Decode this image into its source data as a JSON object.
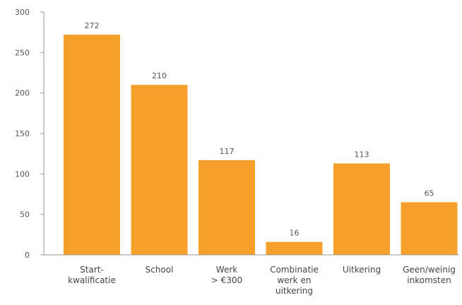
{
  "chart_data": {
    "type": "bar",
    "categories": [
      [
        "Start-",
        "kwalificatie"
      ],
      [
        "School"
      ],
      [
        "Werk",
        "> €300"
      ],
      [
        "Combinatie",
        "werk en",
        "uitkering"
      ],
      [
        "Uitkering"
      ],
      [
        "Geen/weinig",
        "inkomsten"
      ]
    ],
    "values": [
      272,
      210,
      117,
      16,
      113,
      65
    ],
    "data_labels": [
      "272",
      "210",
      "117",
      "16",
      "113",
      "65"
    ],
    "yticks": [
      0,
      50,
      100,
      150,
      200,
      250,
      300
    ],
    "ylim": [
      0,
      300
    ],
    "title": "",
    "xlabel": "",
    "ylabel": "",
    "grid": false,
    "colors": {
      "bar": "#F5A02A",
      "axis": "#999999"
    }
  }
}
